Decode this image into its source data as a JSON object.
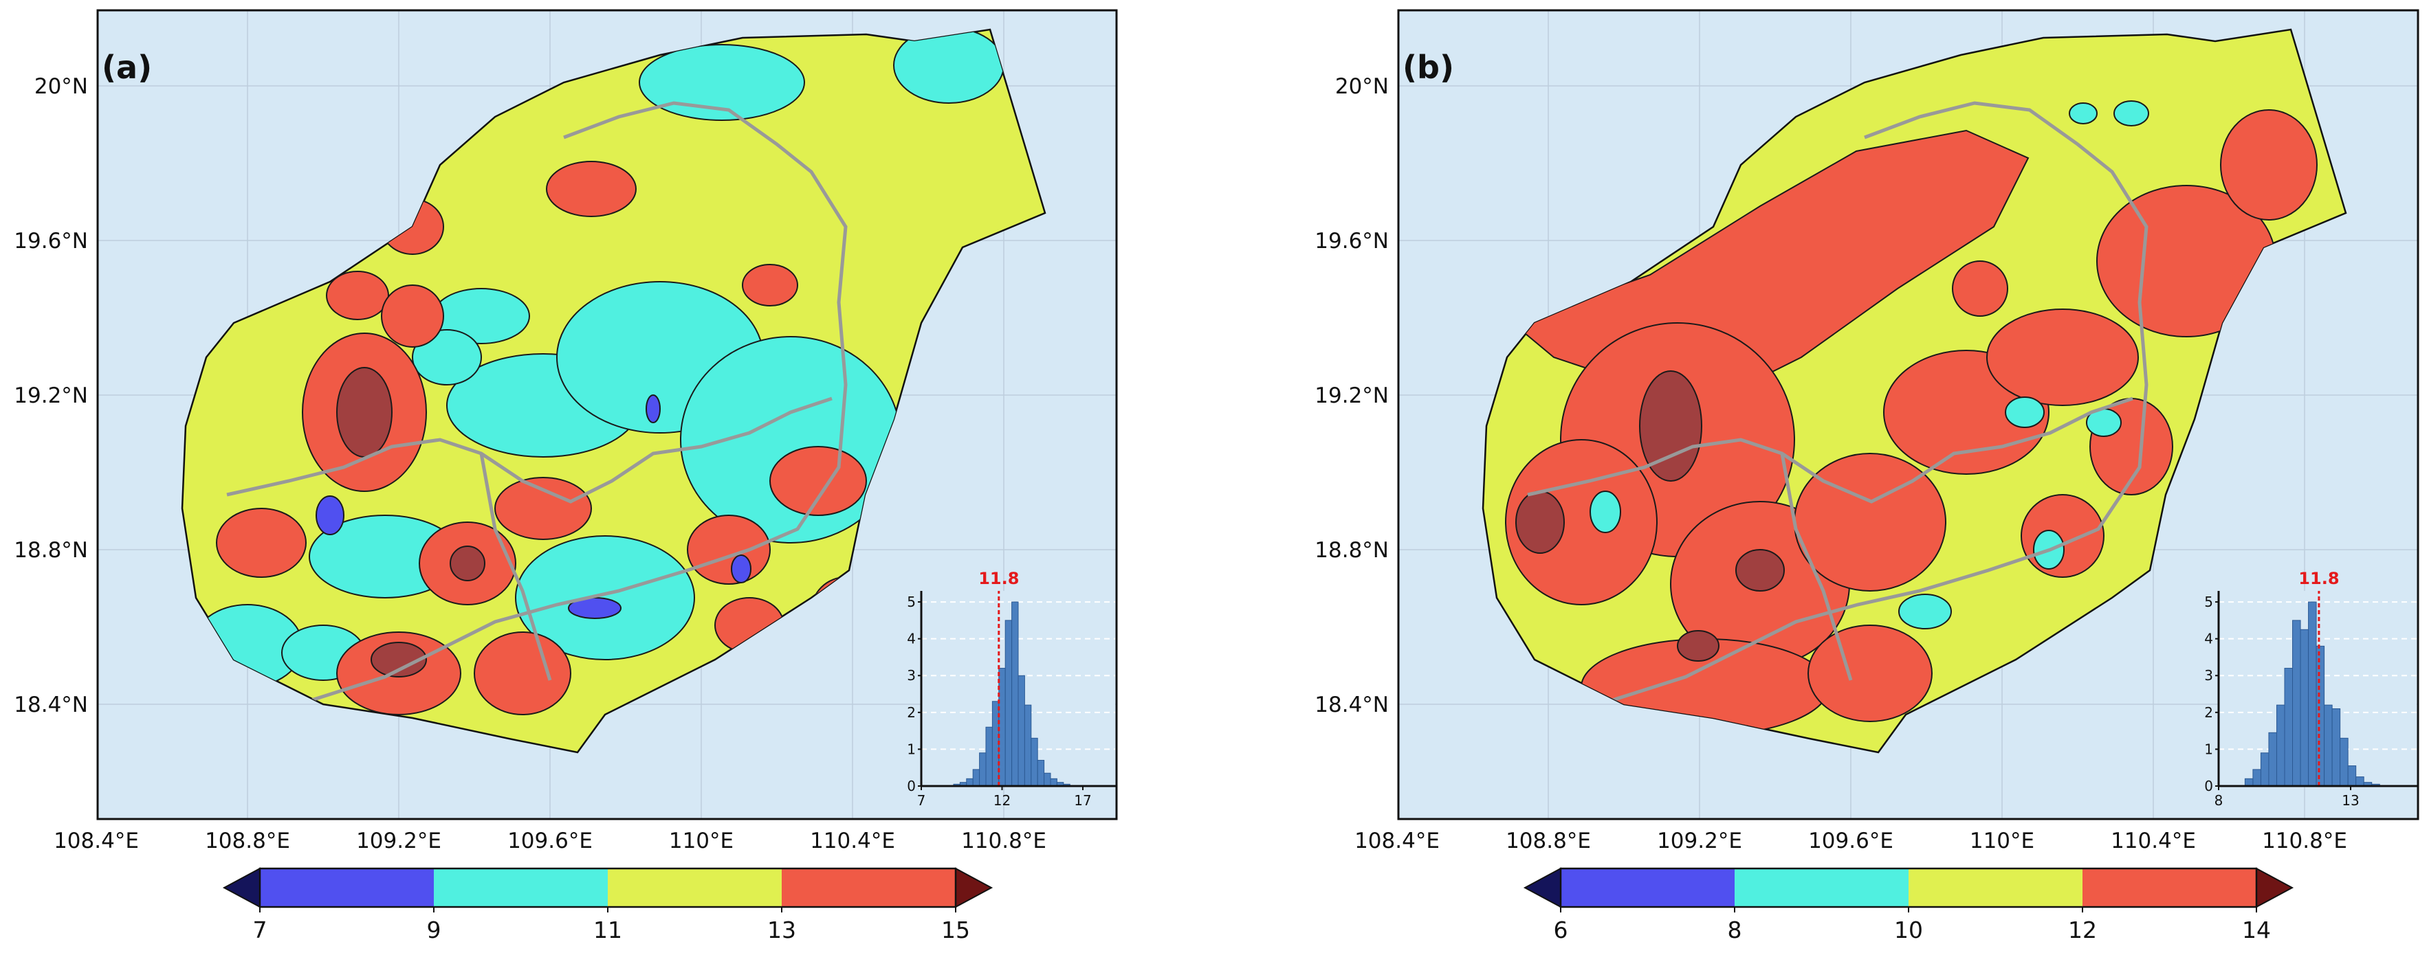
{
  "chart_data": [
    {
      "type": "map",
      "panel_label": "(a)",
      "x_ticks": [
        "108.4°E",
        "108.8°E",
        "109.2°E",
        "109.6°E",
        "110°E",
        "110.4°E",
        "110.8°E"
      ],
      "y_ticks": [
        "20°N",
        "19.6°N",
        "19.2°N",
        "18.8°N",
        "18.4°N"
      ],
      "colorbar": {
        "ticks": [
          "7",
          "9",
          "11",
          "13",
          "15"
        ],
        "bins": [
          {
            "range": [
              7,
              9
            ],
            "color": "#5050f0"
          },
          {
            "range": [
              9,
              11
            ],
            "color": "#50f0e0"
          },
          {
            "range": [
              11,
              13
            ],
            "color": "#e0f050"
          },
          {
            "range": [
              13,
              15
            ],
            "color": "#f05a46"
          }
        ],
        "under_color": "#14145a",
        "over_color": "#6e1414"
      },
      "inset_histogram": {
        "type": "bar",
        "mean_label": "11.8",
        "mean": 11.8,
        "xlim": [
          7,
          19
        ],
        "x_ticks": [
          "7",
          "12",
          "17"
        ],
        "ylim": [
          0,
          5.3
        ],
        "y_ticks": [
          "0",
          "1",
          "2",
          "3",
          "4",
          "5"
        ],
        "bin_width": 0.4,
        "bins_start": 9.0,
        "values": [
          0.05,
          0.1,
          0.2,
          0.45,
          0.9,
          1.6,
          2.3,
          3.2,
          4.5,
          5.0,
          3.0,
          2.2,
          1.3,
          0.7,
          0.35,
          0.2,
          0.1,
          0.05
        ]
      }
    },
    {
      "type": "map",
      "panel_label": "(b)",
      "x_ticks": [
        "108.4°E",
        "108.8°E",
        "109.2°E",
        "109.6°E",
        "110°E",
        "110.4°E",
        "110.8°E"
      ],
      "y_ticks": [
        "20°N",
        "19.6°N",
        "19.2°N",
        "18.8°N",
        "18.4°N"
      ],
      "colorbar": {
        "ticks": [
          "6",
          "8",
          "10",
          "12",
          "14"
        ],
        "bins": [
          {
            "range": [
              6,
              8
            ],
            "color": "#5050f0"
          },
          {
            "range": [
              8,
              10
            ],
            "color": "#50f0e0"
          },
          {
            "range": [
              10,
              12
            ],
            "color": "#e0f050"
          },
          {
            "range": [
              12,
              14
            ],
            "color": "#f05a46"
          }
        ],
        "under_color": "#14145a",
        "over_color": "#6e1414"
      },
      "inset_histogram": {
        "type": "bar",
        "mean_label": "11.8",
        "mean": 11.8,
        "xlim": [
          8,
          15.5
        ],
        "x_ticks": [
          "8",
          "13"
        ],
        "ylim": [
          0,
          5.3
        ],
        "y_ticks": [
          "0",
          "1",
          "2",
          "3",
          "4",
          "5"
        ],
        "bin_width": 0.3,
        "bins_start": 9.0,
        "values": [
          0.2,
          0.45,
          0.9,
          1.45,
          2.2,
          3.2,
          4.5,
          4.25,
          5.0,
          3.8,
          2.2,
          2.1,
          1.3,
          0.55,
          0.25,
          0.1,
          0.05
        ]
      }
    }
  ]
}
